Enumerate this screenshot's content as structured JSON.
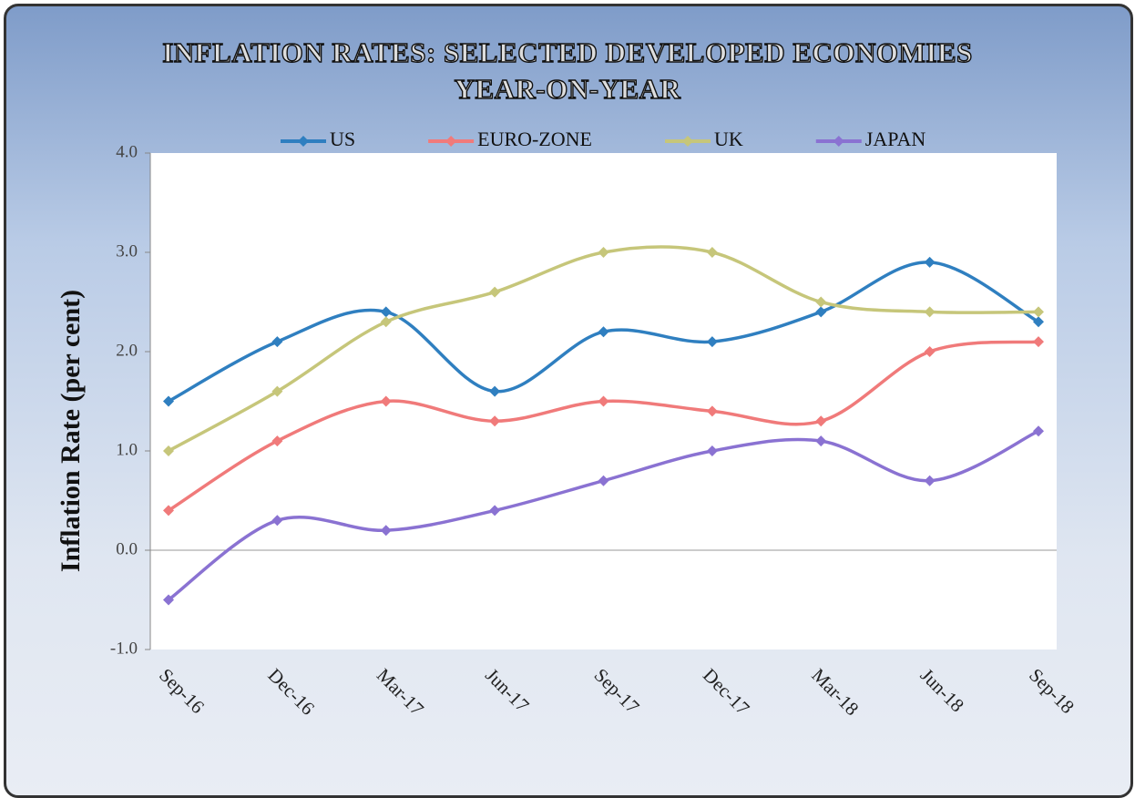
{
  "chart_data": {
    "type": "line",
    "title": "INFLATION RATES: SELECTED DEVELOPED ECONOMIES YEAR-ON-YEAR",
    "y_label": "Inflation Rate (per cent)",
    "categories": [
      "Sep-16",
      "Dec-16",
      "Mar-17",
      "Jun-17",
      "Sep-17",
      "Dec-17",
      "Mar-18",
      "Jun-18",
      "Sep-18"
    ],
    "series": [
      {
        "name": "US",
        "color": "#2f7fc0",
        "values": [
          1.5,
          2.1,
          2.4,
          1.6,
          2.2,
          2.1,
          2.4,
          2.9,
          2.3
        ]
      },
      {
        "name": "EURO-ZONE",
        "color": "#f07a7a",
        "values": [
          0.4,
          1.1,
          1.5,
          1.3,
          1.5,
          1.4,
          1.3,
          2.0,
          2.1
        ]
      },
      {
        "name": "UK",
        "color": "#c6c67a",
        "values": [
          1.0,
          1.6,
          2.3,
          2.6,
          3.0,
          3.0,
          2.5,
          2.4,
          2.4
        ]
      },
      {
        "name": "JAPAN",
        "color": "#8a72d2",
        "values": [
          -0.5,
          0.3,
          0.2,
          0.4,
          0.7,
          1.0,
          1.1,
          0.7,
          1.2
        ]
      }
    ],
    "ylim": [
      -1,
      4
    ],
    "yticks": [
      {
        "value": -1,
        "label": "-1.0"
      },
      {
        "value": 0,
        "label": "0.0"
      },
      {
        "value": 1,
        "label": "1.0"
      },
      {
        "value": 2,
        "label": "2.0"
      },
      {
        "value": 3,
        "label": "3.0"
      },
      {
        "value": 4,
        "label": "4.0"
      }
    ],
    "legend": "top",
    "smooth": true
  }
}
